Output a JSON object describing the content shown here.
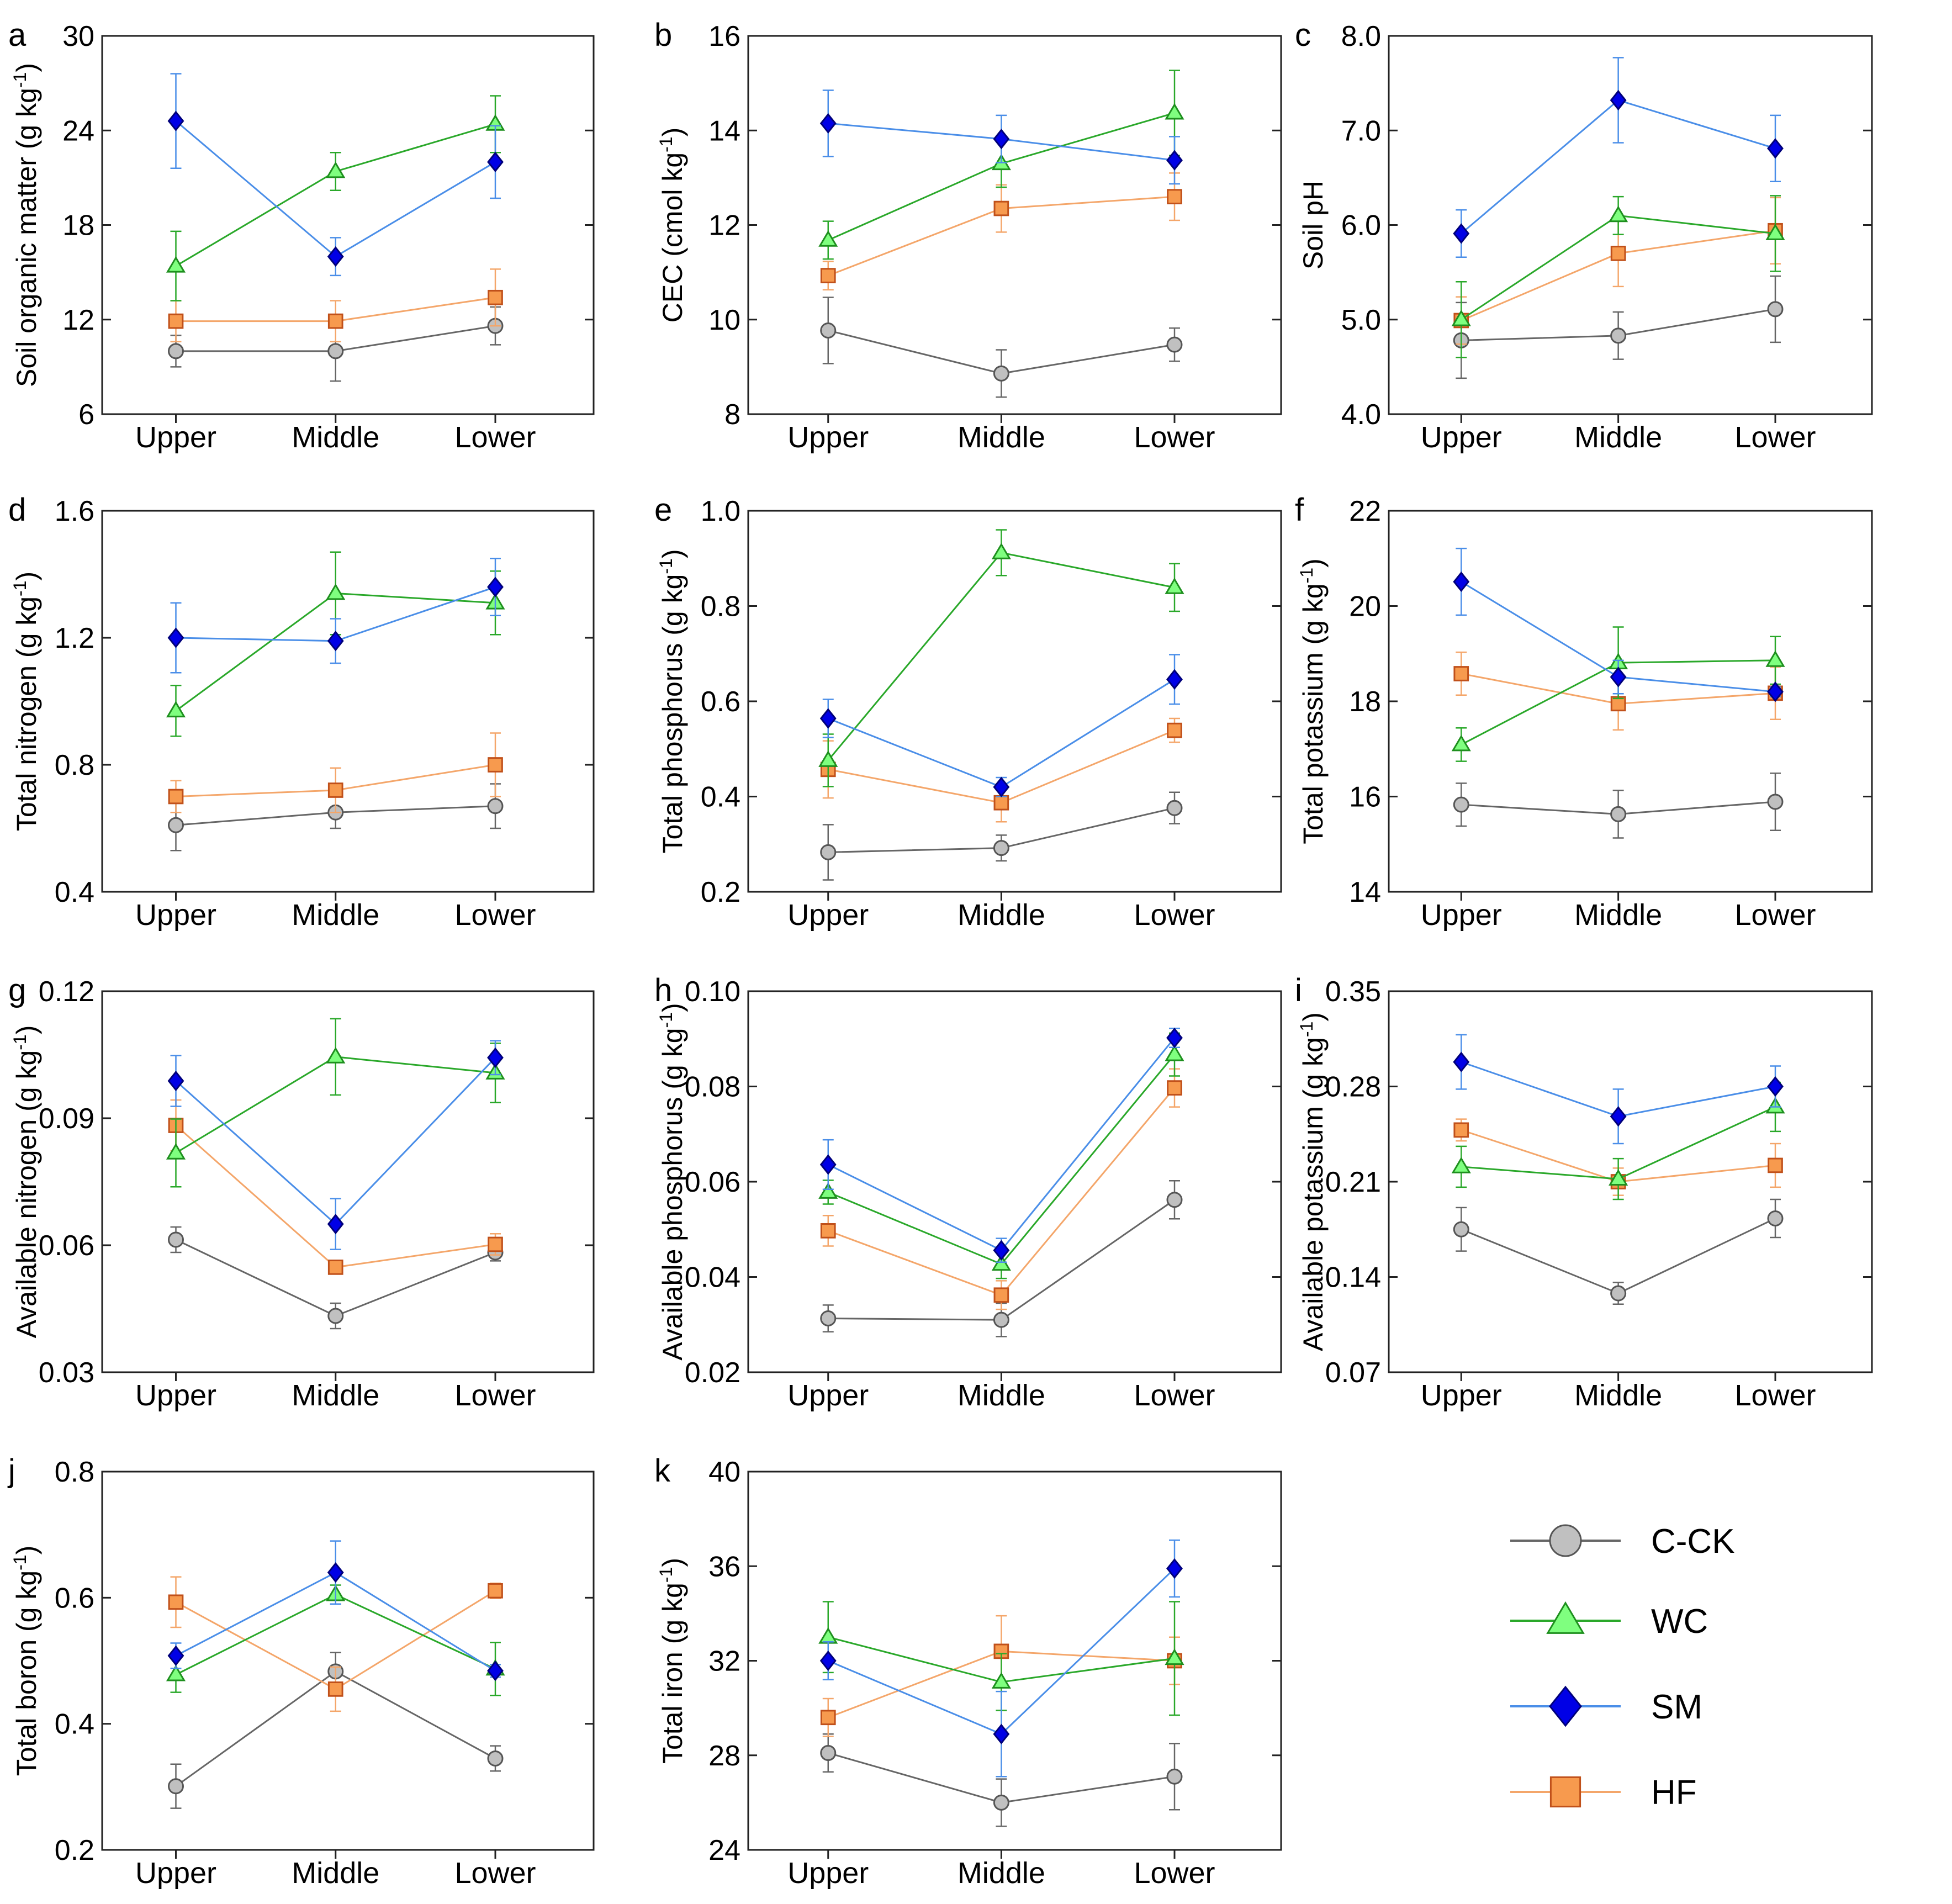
{
  "legend": [
    {
      "key": "CCK",
      "label": "C-CK",
      "line": "#666666",
      "fill": "#c0c0c0",
      "stroke": "#555555",
      "marker": "circle"
    },
    {
      "key": "WC",
      "label": "WC",
      "line": "#2aa82a",
      "fill": "#7fff7f",
      "stroke": "#1e8f1e",
      "marker": "triangle"
    },
    {
      "key": "SM",
      "label": "SM",
      "line": "#4a8ee8",
      "fill": "#0000e6",
      "stroke": "#00007a",
      "marker": "diamond"
    },
    {
      "key": "HF",
      "label": "HF",
      "line": "#f4a66a",
      "fill": "#f79a4e",
      "stroke": "#c0501a",
      "marker": "square"
    }
  ],
  "chart_data": [
    {
      "panel": "a",
      "type": "line",
      "ylabel": "Soil organic matter (g kg",
      "ylabel_sup": "-1",
      "ylabel_end": ")",
      "categories": [
        "Upper",
        "Middle",
        "Lower"
      ],
      "ylim": [
        6,
        30
      ],
      "yticks": [
        "6",
        "12",
        "18",
        "24",
        "30"
      ],
      "series": [
        {
          "name": "C-CK",
          "values": [
            10.0,
            10.0,
            11.6
          ],
          "errors": [
            1.0,
            1.9,
            1.2
          ]
        },
        {
          "name": "WC",
          "values": [
            15.4,
            21.4,
            24.4
          ],
          "errors": [
            2.2,
            1.2,
            1.8
          ]
        },
        {
          "name": "SM",
          "values": [
            24.6,
            16.0,
            22.0
          ],
          "errors": [
            3.0,
            1.2,
            2.3
          ]
        },
        {
          "name": "HF",
          "values": [
            11.9,
            11.9,
            13.4
          ],
          "errors": [
            1.3,
            1.3,
            1.8
          ]
        }
      ]
    },
    {
      "panel": "b",
      "type": "line",
      "ylabel": "CEC (cmol kg",
      "ylabel_sup": "-1",
      "ylabel_end": ")",
      "categories": [
        "Upper",
        "Middle",
        "Lower"
      ],
      "ylim": [
        8,
        16
      ],
      "yticks": [
        "8",
        "10",
        "12",
        "14",
        "16"
      ],
      "series": [
        {
          "name": "C-CK",
          "values": [
            9.77,
            8.86,
            9.47
          ],
          "errors": [
            0.7,
            0.5,
            0.35
          ]
        },
        {
          "name": "WC",
          "values": [
            11.68,
            13.3,
            14.37
          ],
          "errors": [
            0.4,
            0.5,
            0.9
          ]
        },
        {
          "name": "SM",
          "values": [
            14.15,
            13.82,
            13.37
          ],
          "errors": [
            0.7,
            0.5,
            0.5
          ]
        },
        {
          "name": "HF",
          "values": [
            10.93,
            12.35,
            12.6
          ],
          "errors": [
            0.3,
            0.5,
            0.5
          ]
        }
      ]
    },
    {
      "panel": "c",
      "type": "line",
      "ylabel": "Soil pH",
      "ylabel_sup": "",
      "ylabel_end": "",
      "categories": [
        "Upper",
        "Middle",
        "Lower"
      ],
      "ylim": [
        4,
        8
      ],
      "yticks": [
        "4.0",
        "5.0",
        "6.0",
        "7.0",
        "8.0"
      ],
      "series": [
        {
          "name": "C-CK",
          "values": [
            4.78,
            4.83,
            5.11
          ],
          "errors": [
            0.4,
            0.25,
            0.35
          ]
        },
        {
          "name": "WC",
          "values": [
            5.0,
            6.1,
            5.91
          ],
          "errors": [
            0.4,
            0.2,
            0.4
          ]
        },
        {
          "name": "SM",
          "values": [
            5.91,
            7.32,
            6.81
          ],
          "errors": [
            0.25,
            0.45,
            0.35
          ]
        },
        {
          "name": "HF",
          "values": [
            4.99,
            5.7,
            5.94
          ],
          "errors": [
            0.25,
            0.35,
            0.35
          ]
        }
      ]
    },
    {
      "panel": "d",
      "type": "line",
      "ylabel": "Total nitrogen (g kg",
      "ylabel_sup": "-1",
      "ylabel_end": ")",
      "categories": [
        "Upper",
        "Middle",
        "Lower"
      ],
      "ylim": [
        0.4,
        1.6
      ],
      "yticks": [
        "0.4",
        "0.8",
        "1.2",
        "1.6"
      ],
      "series": [
        {
          "name": "C-CK",
          "values": [
            0.61,
            0.65,
            0.67
          ],
          "errors": [
            0.08,
            0.05,
            0.07
          ]
        },
        {
          "name": "WC",
          "values": [
            0.97,
            1.34,
            1.31
          ],
          "errors": [
            0.08,
            0.13,
            0.1
          ]
        },
        {
          "name": "SM",
          "values": [
            1.2,
            1.19,
            1.36
          ],
          "errors": [
            0.11,
            0.07,
            0.09
          ]
        },
        {
          "name": "HF",
          "values": [
            0.7,
            0.72,
            0.8
          ],
          "errors": [
            0.05,
            0.07,
            0.1
          ]
        }
      ]
    },
    {
      "panel": "e",
      "type": "line",
      "ylabel": "Total phosphorus (g kg",
      "ylabel_sup": "-1",
      "ylabel_end": ")",
      "categories": [
        "Upper",
        "Middle",
        "Lower"
      ],
      "ylim": [
        0.2,
        1.0
      ],
      "yticks": [
        "0.2",
        "0.4",
        "0.6",
        "0.8",
        "1.0"
      ],
      "series": [
        {
          "name": "C-CK",
          "values": [
            0.283,
            0.292,
            0.376
          ],
          "errors": [
            0.058,
            0.027,
            0.033
          ]
        },
        {
          "name": "WC",
          "values": [
            0.476,
            0.912,
            0.839
          ],
          "errors": [
            0.055,
            0.048,
            0.05
          ]
        },
        {
          "name": "SM",
          "values": [
            0.564,
            0.42,
            0.646
          ],
          "errors": [
            0.04,
            0.02,
            0.052
          ]
        },
        {
          "name": "HF",
          "values": [
            0.457,
            0.387,
            0.539
          ],
          "errors": [
            0.06,
            0.04,
            0.025
          ]
        }
      ]
    },
    {
      "panel": "f",
      "type": "line",
      "ylabel": "Total potassium (g kg",
      "ylabel_sup": "-1",
      "ylabel_end": ")",
      "categories": [
        "Upper",
        "Middle",
        "Lower"
      ],
      "ylim": [
        14,
        22
      ],
      "yticks": [
        "14",
        "16",
        "18",
        "20",
        "22"
      ],
      "series": [
        {
          "name": "C-CK",
          "values": [
            15.83,
            15.63,
            15.89
          ],
          "errors": [
            0.45,
            0.5,
            0.6
          ]
        },
        {
          "name": "WC",
          "values": [
            17.09,
            18.81,
            18.86
          ],
          "errors": [
            0.35,
            0.75,
            0.5
          ]
        },
        {
          "name": "SM",
          "values": [
            20.51,
            18.51,
            18.2
          ],
          "errors": [
            0.7,
            0.35,
            0.1
          ]
        },
        {
          "name": "HF",
          "values": [
            18.58,
            17.95,
            18.17
          ],
          "errors": [
            0.45,
            0.55,
            0.55
          ]
        }
      ]
    },
    {
      "panel": "g",
      "type": "line",
      "ylabel": "Available nitrogen (g kg",
      "ylabel_sup": "-1",
      "ylabel_end": ")",
      "categories": [
        "Upper",
        "Middle",
        "Lower"
      ],
      "ylim": [
        0.03,
        0.12
      ],
      "yticks": [
        "0.03",
        "0.06",
        "0.09",
        "0.12"
      ],
      "series": [
        {
          "name": "C-CK",
          "values": [
            0.0613,
            0.0433,
            0.0583
          ],
          "errors": [
            0.003,
            0.003,
            0.002
          ]
        },
        {
          "name": "WC",
          "values": [
            0.0818,
            0.1045,
            0.1007
          ],
          "errors": [
            0.008,
            0.009,
            0.007
          ]
        },
        {
          "name": "SM",
          "values": [
            0.0988,
            0.065,
            0.1043
          ],
          "errors": [
            0.006,
            0.006,
            0.004
          ]
        },
        {
          "name": "HF",
          "values": [
            0.0883,
            0.0548,
            0.0602
          ],
          "errors": [
            0.006,
            0.0015,
            0.0025
          ]
        }
      ]
    },
    {
      "panel": "h",
      "type": "line",
      "ylabel": "Available phosphorus (g kg",
      "ylabel_sup": "-1",
      "ylabel_end": ")",
      "categories": [
        "Upper",
        "Middle",
        "Lower"
      ],
      "ylim": [
        0.02,
        0.1
      ],
      "yticks": [
        "0.02",
        "0.04",
        "0.06",
        "0.08",
        "0.10"
      ],
      "series": [
        {
          "name": "C-CK",
          "values": [
            0.0313,
            0.031,
            0.0562
          ],
          "errors": [
            0.0028,
            0.0035,
            0.004
          ]
        },
        {
          "name": "WC",
          "values": [
            0.0578,
            0.0427,
            0.0867
          ],
          "errors": [
            0.0025,
            0.003,
            0.0045
          ]
        },
        {
          "name": "SM",
          "values": [
            0.0636,
            0.0456,
            0.0902
          ],
          "errors": [
            0.0052,
            0.0025,
            0.002
          ]
        },
        {
          "name": "HF",
          "values": [
            0.0497,
            0.0362,
            0.0797
          ],
          "errors": [
            0.0032,
            0.003,
            0.004
          ]
        }
      ]
    },
    {
      "panel": "i",
      "type": "line",
      "ylabel": "Available potassium (g kg",
      "ylabel_sup": "-1",
      "ylabel_end": ")",
      "categories": [
        "Upper",
        "Middle",
        "Lower"
      ],
      "ylim": [
        0.07,
        0.35
      ],
      "yticks": [
        "0.07",
        "0.14",
        "0.21",
        "0.28",
        "0.35"
      ],
      "series": [
        {
          "name": "C-CK",
          "values": [
            0.175,
            0.128,
            0.183
          ],
          "errors": [
            0.016,
            0.008,
            0.014
          ]
        },
        {
          "name": "WC",
          "values": [
            0.221,
            0.212,
            0.265
          ],
          "errors": [
            0.015,
            0.015,
            0.018
          ]
        },
        {
          "name": "SM",
          "values": [
            0.298,
            0.258,
            0.28
          ],
          "errors": [
            0.02,
            0.02,
            0.015
          ]
        },
        {
          "name": "HF",
          "values": [
            0.248,
            0.21,
            0.222
          ],
          "errors": [
            0.008,
            0.01,
            0.016
          ]
        }
      ]
    },
    {
      "panel": "j",
      "type": "line",
      "ylabel": "Total boron (g kg",
      "ylabel_sup": "-1",
      "ylabel_end": ")",
      "categories": [
        "Upper",
        "Middle",
        "Lower"
      ],
      "ylim": [
        0.2,
        0.8
      ],
      "yticks": [
        "0.2",
        "0.4",
        "0.6",
        "0.8"
      ],
      "series": [
        {
          "name": "C-CK",
          "values": [
            0.301,
            0.483,
            0.345
          ],
          "errors": [
            0.035,
            0.03,
            0.02
          ]
        },
        {
          "name": "WC",
          "values": [
            0.478,
            0.605,
            0.487
          ],
          "errors": [
            0.028,
            0.015,
            0.042
          ]
        },
        {
          "name": "SM",
          "values": [
            0.508,
            0.64,
            0.484
          ],
          "errors": [
            0.02,
            0.05,
            0.01
          ]
        },
        {
          "name": "HF",
          "values": [
            0.593,
            0.455,
            0.611
          ],
          "errors": [
            0.04,
            0.035,
            0.012
          ]
        }
      ]
    },
    {
      "panel": "k",
      "type": "line",
      "ylabel": "Total iron (g kg",
      "ylabel_sup": "-1",
      "ylabel_end": ")",
      "categories": [
        "Upper",
        "Middle",
        "Lower"
      ],
      "ylim": [
        24,
        40
      ],
      "yticks": [
        "24",
        "28",
        "32",
        "36",
        "40"
      ],
      "series": [
        {
          "name": "C-CK",
          "values": [
            28.1,
            26.0,
            27.1
          ],
          "errors": [
            0.8,
            1.0,
            1.4
          ]
        },
        {
          "name": "WC",
          "values": [
            33.0,
            31.1,
            32.1
          ],
          "errors": [
            1.5,
            1.2,
            2.4
          ]
        },
        {
          "name": "SM",
          "values": [
            32.0,
            28.9,
            35.9
          ],
          "errors": [
            0.8,
            1.8,
            1.2
          ]
        },
        {
          "name": "HF",
          "values": [
            29.6,
            32.4,
            32.0
          ],
          "errors": [
            0.8,
            1.5,
            1.0
          ]
        }
      ]
    }
  ]
}
